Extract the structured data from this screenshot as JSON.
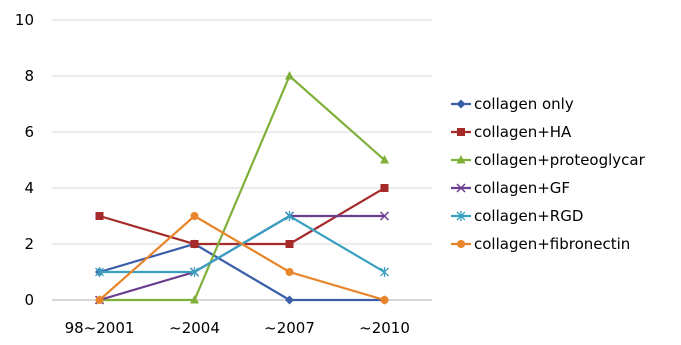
{
  "chart_data": {
    "type": "line",
    "categories": [
      "98~2001",
      "~2004",
      "~2007",
      "~2010"
    ],
    "ylim": [
      0,
      10
    ],
    "yticks": [
      0,
      2,
      4,
      6,
      8,
      10
    ],
    "grid": true,
    "legend_position": "right",
    "series": [
      {
        "name": "collagen only",
        "values": [
          1,
          2,
          0,
          0
        ],
        "color": "#3a5fa8",
        "marker": "diamond"
      },
      {
        "name": "collagen+HA",
        "values": [
          3,
          2,
          2,
          4
        ],
        "color": "#a52a2a",
        "marker": "square"
      },
      {
        "name": "collagen+proteoglycar",
        "values": [
          0,
          0,
          8,
          5
        ],
        "color": "#7fb03a",
        "marker": "triangle"
      },
      {
        "name": "collagen+GF",
        "values": [
          0,
          1,
          3,
          3
        ],
        "color": "#6a3d8f",
        "marker": "x"
      },
      {
        "name": "collagen+RGD",
        "values": [
          1,
          1,
          3,
          1
        ],
        "color": "#3aa0c0",
        "marker": "star"
      },
      {
        "name": "collagen+fibronectin",
        "values": [
          0,
          3,
          1,
          0
        ],
        "color": "#e8852a",
        "marker": "circle"
      }
    ]
  }
}
